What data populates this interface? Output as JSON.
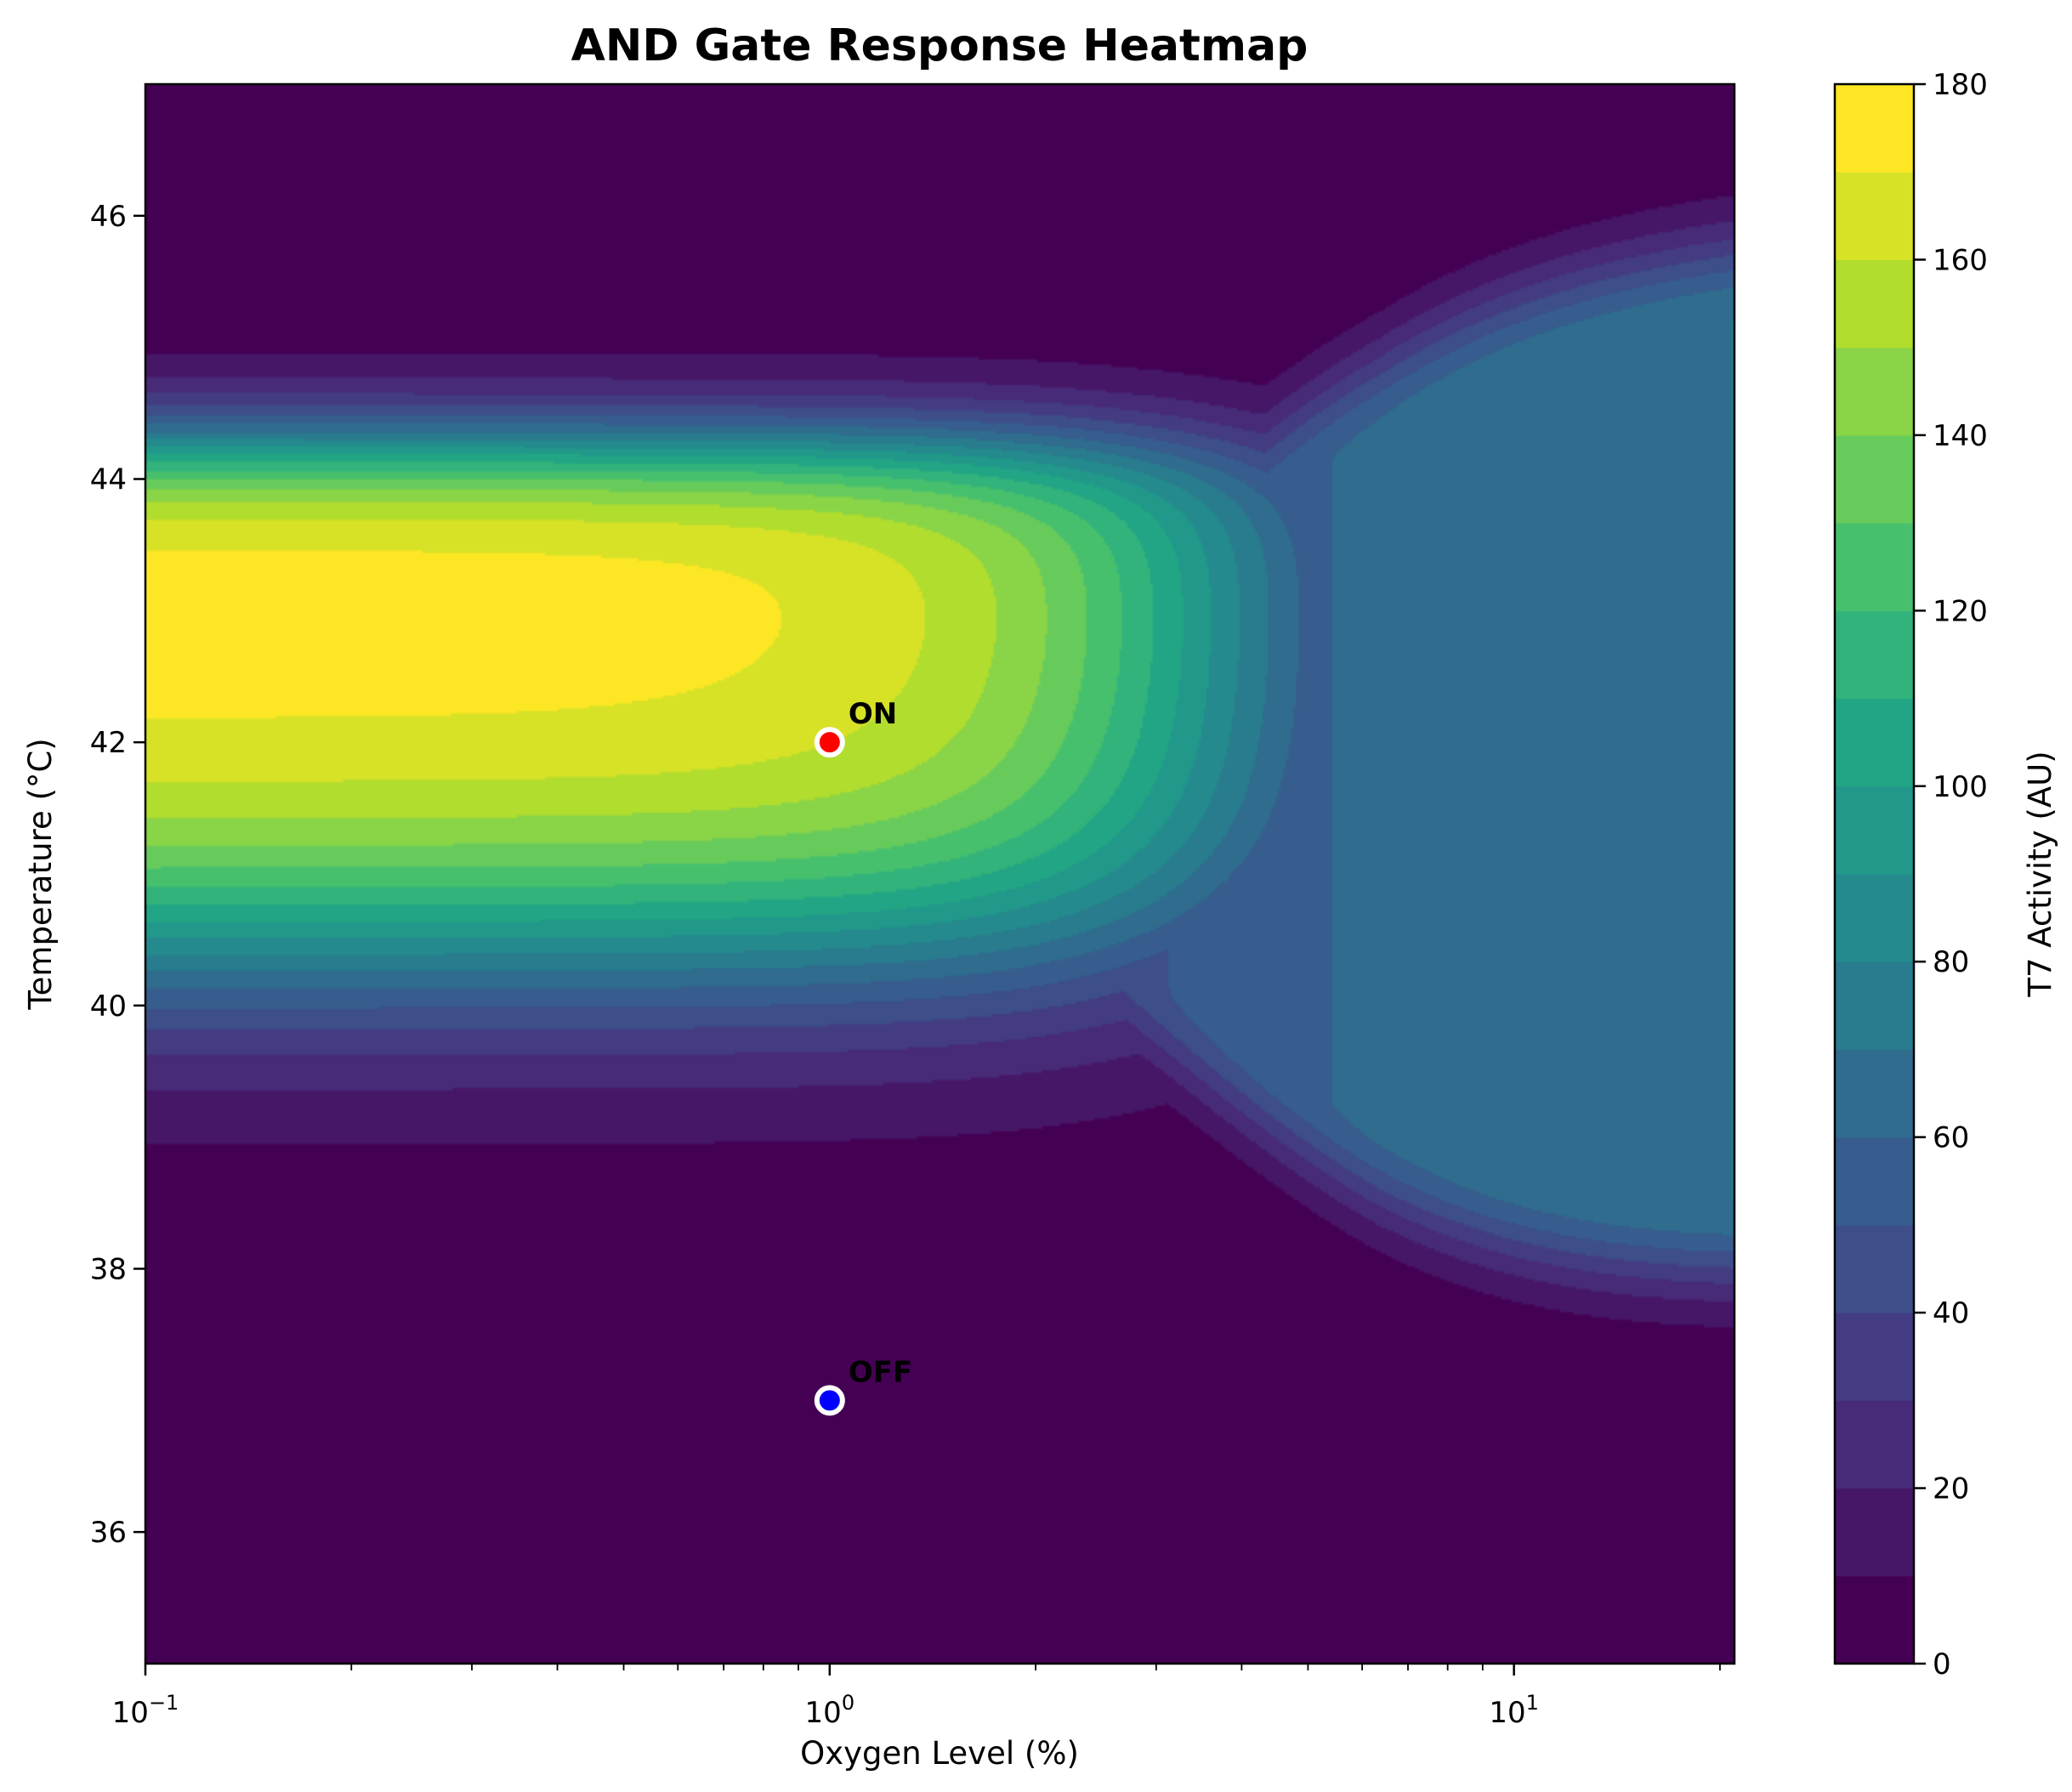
{
  "chart_data": {
    "type": "heatmap",
    "title": "AND Gate Response Heatmap",
    "xlabel": "Oxygen Level (%)",
    "ylabel": "Temperature (°C)",
    "colorbar_label": "T7 Activity (AU)",
    "x_scale": "log",
    "xlim": [
      0.1,
      21
    ],
    "ylim": [
      35,
      47
    ],
    "x_ticks": [
      {
        "value": 0.1,
        "base": "10",
        "exp": "−1"
      },
      {
        "value": 1,
        "base": "10",
        "exp": "0"
      },
      {
        "value": 10,
        "base": "10",
        "exp": "1"
      }
    ],
    "y_ticks": [
      {
        "value": 36,
        "label": "36"
      },
      {
        "value": 38,
        "label": "38"
      },
      {
        "value": 40,
        "label": "40"
      },
      {
        "value": 42,
        "label": "42"
      },
      {
        "value": 44,
        "label": "44"
      },
      {
        "value": 46,
        "label": "46"
      }
    ],
    "colorbar_range": [
      0,
      180
    ],
    "colorbar_ticks": [
      {
        "value": 0,
        "label": "0"
      },
      {
        "value": 20,
        "label": "20"
      },
      {
        "value": 40,
        "label": "40"
      },
      {
        "value": 60,
        "label": "60"
      },
      {
        "value": 80,
        "label": "80"
      },
      {
        "value": 100,
        "label": "100"
      },
      {
        "value": 120,
        "label": "120"
      },
      {
        "value": 140,
        "label": "140"
      },
      {
        "value": 160,
        "label": "160"
      },
      {
        "value": 180,
        "label": "180"
      }
    ],
    "colormap": "viridis",
    "colormap_stops": [
      "#440154",
      "#482475",
      "#414487",
      "#355f8d",
      "#2a788e",
      "#21918c",
      "#22a884",
      "#44bf70",
      "#7ad151",
      "#bddf26",
      "#fde725"
    ],
    "levels": [
      0,
      10,
      20,
      30,
      40,
      50,
      60,
      70,
      80,
      90,
      100,
      110,
      120,
      130,
      140,
      150,
      160,
      170,
      180
    ],
    "annotations": [
      {
        "label": "ON",
        "x": 1,
        "y": 42,
        "color": "#ff0000"
      },
      {
        "label": "OFF",
        "x": 1,
        "y": 37,
        "color": "#0000ff"
      }
    ],
    "grid": false
  }
}
